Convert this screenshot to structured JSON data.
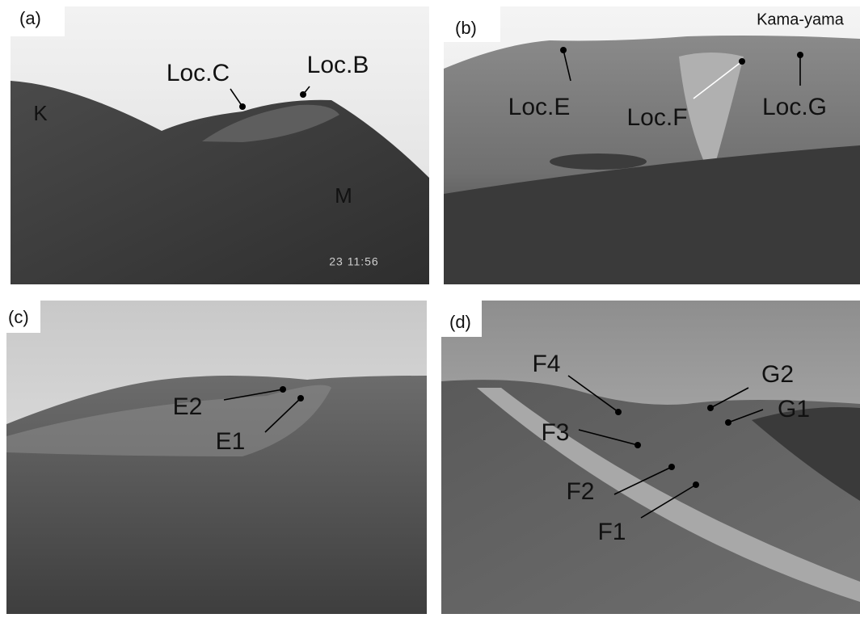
{
  "panels": [
    {
      "label": "(a)",
      "annotations": [
        "Loc.C",
        "Loc.B"
      ],
      "texts": [
        "K",
        "M",
        "23 11:56"
      ]
    },
    {
      "label": "(b)",
      "annotations": [
        "Loc.E",
        "Loc.F",
        "Loc.G"
      ],
      "texts": [
        "Kama-yama"
      ]
    },
    {
      "label": "(c)",
      "annotations": [
        "E2",
        "E1"
      ]
    },
    {
      "label": "(d)",
      "annotations": [
        "F4",
        "G2",
        "G1",
        "F3",
        "F2",
        "F1"
      ]
    }
  ]
}
